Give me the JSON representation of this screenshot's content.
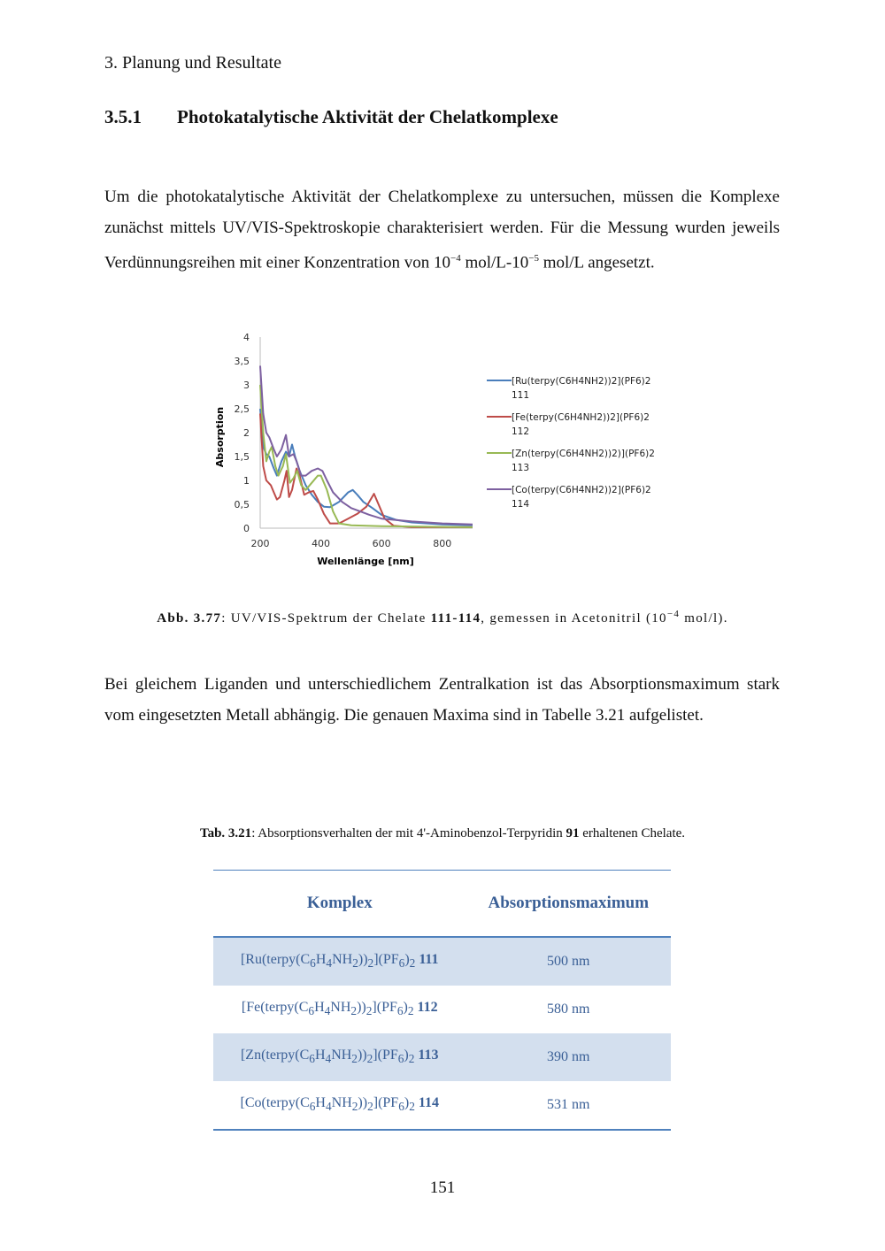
{
  "header": "3. Planung und Resultate",
  "section": {
    "number": "3.5.1",
    "title": "Photokatalytische Aktivität der Chelatkomplexe"
  },
  "p1": {
    "text1": "Um die photokatalytische Aktivität der Chelatkomplexe zu untersuchen, müssen die Komplexe zunächst mittels UV/VIS-Spektroskopie charakterisiert werden. Für die Messung wurden jeweils Verdünnungsreihen mit einer Konzentration von 10",
    "exp1": "−4",
    "text2": " mol/L-10",
    "exp2": "−5",
    "text3": " mol/L angesetzt."
  },
  "figure_caption": {
    "label": "Abb. 3.77",
    "text1": ": UV/VIS-Spektrum der Chelate ",
    "bold": "111-114",
    "text2": ", gemessen in Acetonitril (10",
    "exp": "−4",
    "text3": " mol/l)."
  },
  "p2": "Bei gleichem Liganden und unterschiedlichem Zentralkation ist das Absorptionsmaximum stark vom eingesetzten Metall abhängig. Die genauen Maxima sind in Tabelle 3.21 aufgelistet.",
  "table_caption": {
    "label": "Tab.  3.21",
    "text1": ": Absorptionsverhalten der mit 4'-Aminobenzol-Terpyridin ",
    "bold": "91",
    "text2": " erhaltenen Chelate."
  },
  "table": {
    "headers": [
      "Komplex",
      "Absorptionsmaximum"
    ],
    "rows": [
      {
        "metal": "Ru",
        "id": "111",
        "max": "500 nm"
      },
      {
        "metal": "Fe",
        "id": "112",
        "max": "580 nm"
      },
      {
        "metal": "Zn",
        "id": "113",
        "max": "390 nm"
      },
      {
        "metal": "Co",
        "id": "114",
        "max": "531 nm"
      }
    ]
  },
  "page_number": "151",
  "chart_data": {
    "type": "line",
    "xlabel": "Wellenlänge [nm]",
    "ylabel": "Absorption",
    "xlim": [
      200,
      900
    ],
    "ylim": [
      0,
      4
    ],
    "xticks": [
      "200",
      "400",
      "600",
      "800"
    ],
    "yticks": [
      "0",
      "0,5",
      "1",
      "1,5",
      "2",
      "2,5",
      "3",
      "3,5",
      "4"
    ],
    "legend": "right",
    "grid": false,
    "series": [
      {
        "name": "[Ru(terpy(C6H4NH2))2](PF6)2 111",
        "color": "#4a7ebb",
        "x": [
          200,
          210,
          220,
          230,
          245,
          255,
          270,
          285,
          295,
          305,
          315,
          330,
          350,
          370,
          390,
          410,
          430,
          460,
          490,
          505,
          520,
          540,
          570,
          600,
          650,
          700,
          800,
          900
        ],
        "y": [
          2.5,
          1.7,
          1.55,
          1.5,
          1.25,
          1.1,
          1.4,
          1.6,
          1.5,
          1.75,
          1.5,
          1.2,
          0.9,
          0.7,
          0.55,
          0.45,
          0.44,
          0.55,
          0.75,
          0.8,
          0.7,
          0.55,
          0.42,
          0.28,
          0.17,
          0.12,
          0.08,
          0.06
        ]
      },
      {
        "name": "[Fe(terpy(C6H4NH2))2](PF6)2 112",
        "color": "#be4b48",
        "x": [
          200,
          210,
          220,
          235,
          245,
          255,
          265,
          280,
          287,
          295,
          305,
          320,
          330,
          345,
          360,
          375,
          390,
          410,
          430,
          460,
          490,
          520,
          550,
          575,
          590,
          610,
          640,
          700,
          900
        ],
        "y": [
          2.4,
          1.3,
          1.0,
          0.9,
          0.75,
          0.6,
          0.65,
          1.0,
          1.2,
          0.65,
          0.8,
          1.25,
          1.1,
          0.7,
          0.75,
          0.78,
          0.6,
          0.3,
          0.1,
          0.1,
          0.2,
          0.3,
          0.45,
          0.72,
          0.5,
          0.2,
          0.05,
          0.02,
          0.02
        ]
      },
      {
        "name": "[Zn(terpy(C6H4NH2))2)](PF6)2 113",
        "color": "#98b954",
        "x": [
          200,
          210,
          220,
          230,
          238,
          250,
          260,
          275,
          285,
          298,
          310,
          322,
          335,
          350,
          370,
          390,
          400,
          420,
          440,
          460,
          500,
          600,
          900
        ],
        "y": [
          3.0,
          2.0,
          1.4,
          1.6,
          1.7,
          1.3,
          1.1,
          1.3,
          1.55,
          0.95,
          1.05,
          1.2,
          0.9,
          0.8,
          0.95,
          1.1,
          1.1,
          0.8,
          0.35,
          0.1,
          0.06,
          0.04,
          0.02
        ]
      },
      {
        "name": "[Co(terpy(C6H4NH2))2](PF6)2 114",
        "color": "#7d60a0",
        "x": [
          200,
          210,
          220,
          230,
          245,
          255,
          270,
          285,
          295,
          310,
          320,
          335,
          350,
          370,
          390,
          405,
          420,
          440,
          470,
          500,
          530,
          560,
          600,
          700,
          800,
          900
        ],
        "y": [
          3.4,
          2.4,
          2.0,
          1.9,
          1.65,
          1.5,
          1.65,
          1.95,
          1.5,
          1.55,
          1.4,
          1.1,
          1.1,
          1.2,
          1.25,
          1.2,
          1.0,
          0.75,
          0.55,
          0.42,
          0.35,
          0.28,
          0.2,
          0.14,
          0.1,
          0.08
        ]
      }
    ]
  }
}
